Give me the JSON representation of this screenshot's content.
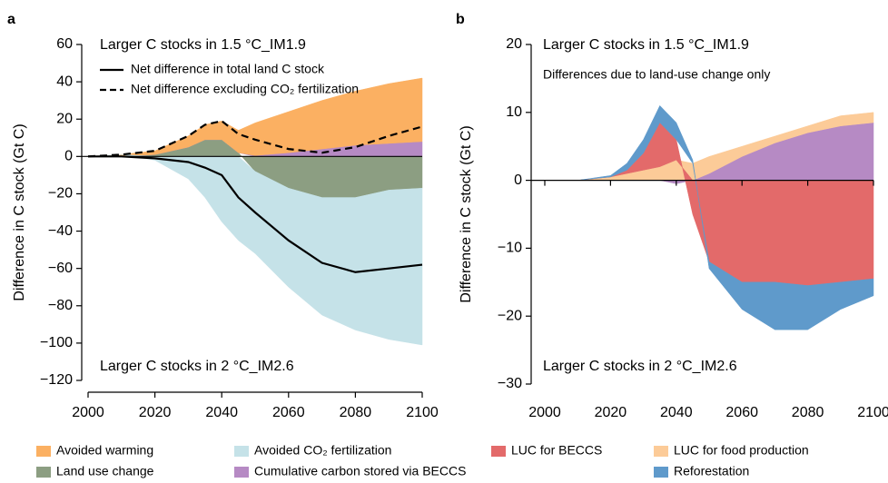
{
  "chart_data": [
    {
      "type": "area",
      "panel_label": "a",
      "ylabel": "Difference in C stock (Gt C)",
      "annotations": [
        {
          "text": "Larger C stocks in 1.5 °C_IM1.9",
          "color": "#e8692b"
        },
        {
          "text": "Larger C stocks in 2 °C_IM2.6",
          "color": "#6d3a9c"
        }
      ],
      "x": [
        2000,
        2010,
        2020,
        2030,
        2035,
        2040,
        2045,
        2050,
        2060,
        2070,
        2080,
        2090,
        2100
      ],
      "xlim": [
        2000,
        2100
      ],
      "xticks": [
        2000,
        2020,
        2040,
        2060,
        2080,
        2100
      ],
      "ylim": [
        -120,
        60
      ],
      "yticks": [
        {
          "value": -120,
          "label": "−120"
        },
        {
          "value": -100,
          "label": "−100"
        },
        {
          "value": -80,
          "label": "−80"
        },
        {
          "value": -60,
          "label": "−60"
        },
        {
          "value": -40,
          "label": "−40"
        },
        {
          "value": -20,
          "label": "−20"
        },
        0,
        20,
        40,
        60
      ],
      "series": [
        {
          "name": "Land use change",
          "color": "#8c9e82",
          "values": [
            0,
            0,
            1,
            5,
            9,
            9,
            2,
            -8,
            -17,
            -22,
            -22,
            -18,
            -17
          ]
        },
        {
          "name": "Cumulative carbon stored via BECCS",
          "color": "#b68ac4",
          "values": [
            0,
            0,
            0,
            0,
            0,
            0,
            0,
            0.5,
            2,
            4,
            6,
            7,
            8
          ]
        },
        {
          "name": "Avoided warming",
          "color": "#fbb062",
          "values": [
            0,
            1,
            2,
            6,
            8,
            10,
            12,
            17.5,
            22,
            26,
            29,
            32,
            34
          ]
        },
        {
          "name": "Avoided CO₂ fertilization",
          "color": "#c5e2e8",
          "values": [
            0,
            0,
            -2,
            -12,
            -22,
            -35,
            -45,
            -44,
            -53,
            -63,
            -71,
            -80,
            -84
          ]
        },
        {
          "name": "Net difference in total land C stock",
          "type": "line",
          "color": "#000000",
          "dash": false,
          "values": [
            0,
            0,
            -1,
            -3,
            -6,
            -10,
            -22,
            -30,
            -45,
            -57,
            -62,
            -60,
            -58
          ]
        },
        {
          "name": "Net difference excluding CO₂ fertilization",
          "type": "line",
          "color": "#000000",
          "dash": true,
          "values": [
            0,
            1,
            3,
            11,
            17,
            19,
            12,
            9,
            4,
            2,
            5,
            11,
            16
          ]
        }
      ]
    },
    {
      "type": "area",
      "panel_label": "b",
      "ylabel": "Difference in C stock (Gt C)",
      "annotations": [
        {
          "text": "Larger C stocks in 1.5 °C_IM1.9",
          "color": "#e8692b"
        },
        {
          "text": "Differences due to land-use change only",
          "color": "#000000"
        },
        {
          "text": "Larger C stocks in 2 °C_IM2.6",
          "color": "#6d3a9c"
        }
      ],
      "x": [
        2000,
        2010,
        2020,
        2025,
        2030,
        2035,
        2040,
        2045,
        2050,
        2060,
        2070,
        2080,
        2090,
        2100
      ],
      "xlim": [
        2000,
        2100
      ],
      "xticks": [
        2000,
        2020,
        2040,
        2060,
        2080,
        2100
      ],
      "ylim": [
        -30,
        20
      ],
      "yticks": [
        {
          "value": -30,
          "label": "−30"
        },
        {
          "value": -20,
          "label": "−20"
        },
        {
          "value": -10,
          "label": "−10"
        },
        0,
        10,
        20
      ],
      "series": [
        {
          "name": "Cumulative carbon stored via BECCS",
          "color": "#b68ac4",
          "values": [
            0,
            0,
            0,
            0,
            0,
            0,
            -0.5,
            0,
            1,
            3.5,
            5.5,
            7,
            8,
            8.5
          ]
        },
        {
          "name": "LUC for food production",
          "color": "#fccb98",
          "values": [
            0,
            0,
            0.5,
            1,
            1.5,
            2,
            3,
            2.5,
            2.5,
            1.5,
            1,
            1,
            1.5,
            1.5
          ]
        },
        {
          "name": "LUC for BECCS",
          "color": "#e36a6a",
          "values": [
            0,
            0,
            0,
            0.5,
            2.5,
            6.5,
            3,
            -5,
            -12,
            -15,
            -15,
            -15.5,
            -15,
            -14.5
          ]
        },
        {
          "name": "Reforestation",
          "color": "#5f9acb",
          "values": [
            0,
            0,
            0.2,
            1,
            2,
            2.5,
            2.5,
            0.5,
            -1,
            -4,
            -7,
            -6.5,
            -4,
            -2.5
          ]
        }
      ]
    }
  ]
}
